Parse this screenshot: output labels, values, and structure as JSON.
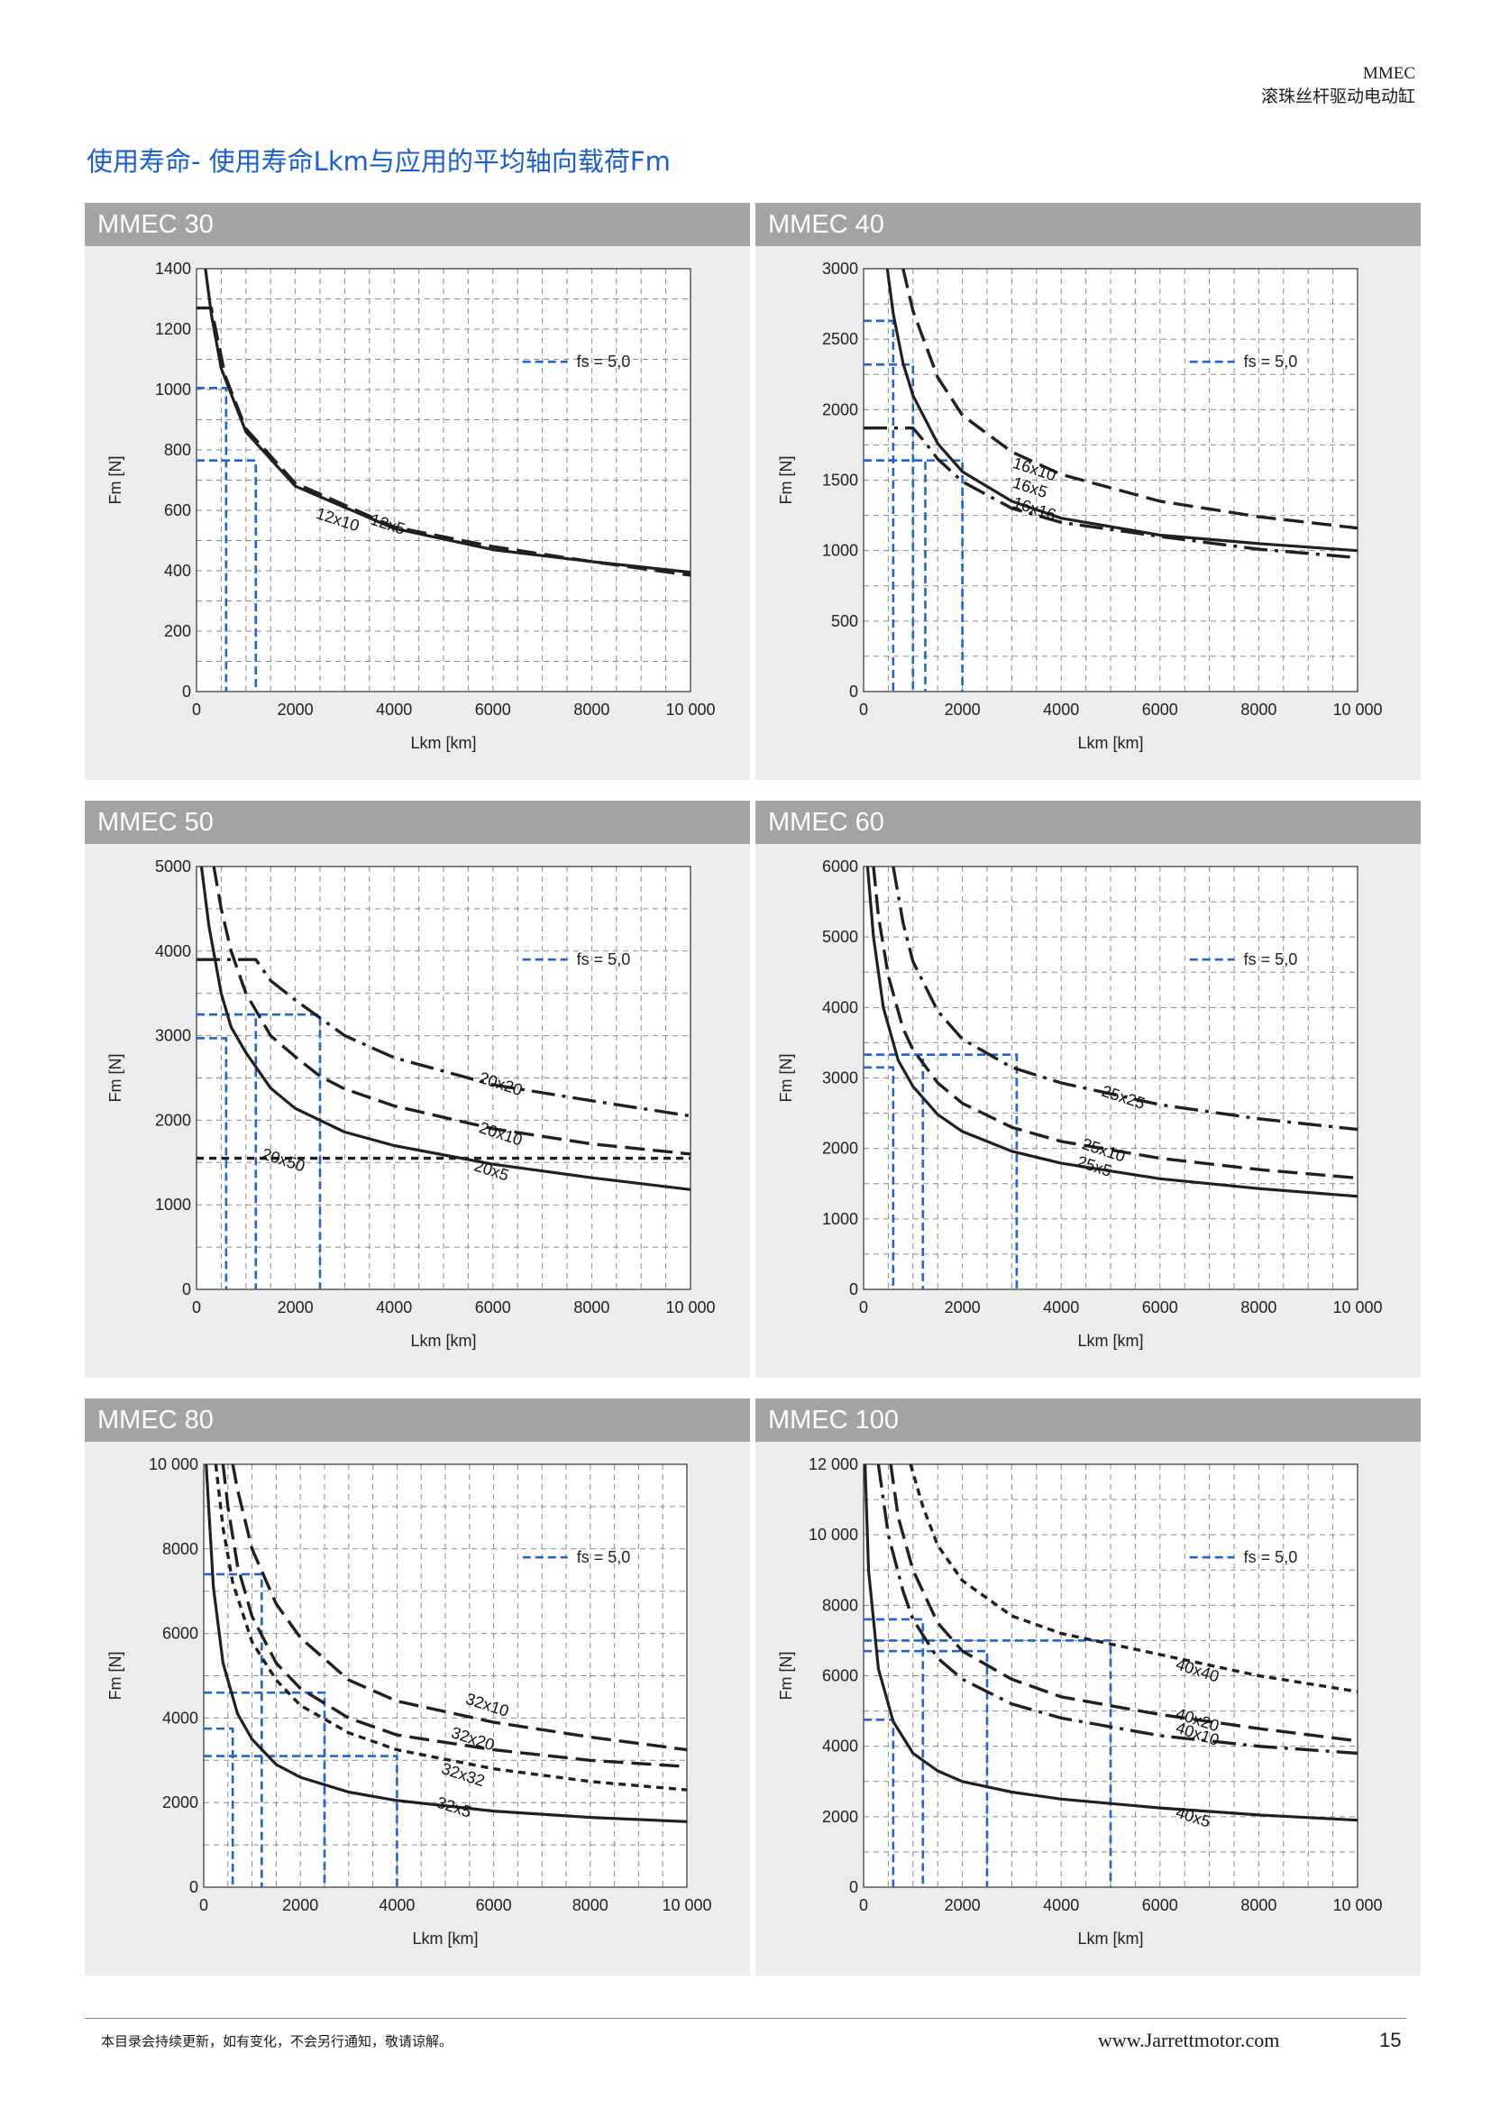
{
  "header": {
    "line1": "MMEC",
    "line2": "滚珠丝杆驱动电动缸"
  },
  "page_title": "使用寿命- 使用寿命Lkm与应用的平均轴向载荷Fm",
  "footer": {
    "note": "本目录会持续更新，如有变化，不会另行通知，敬请谅解。",
    "url": "www.Jarrettmotor.com",
    "page": "15"
  },
  "colors": {
    "curve": "#231f20",
    "fs_line": "#1f63d6",
    "panel_bg": "#ececec",
    "title_bar": "#a3a3a3"
  },
  "chart_data": [
    {
      "title": "MMEC 30",
      "type": "line",
      "xlabel": "Lkm [km]",
      "ylabel": "Fm [N]",
      "xlim": [
        0,
        10000
      ],
      "ylim": [
        0,
        1400
      ],
      "yticks": [
        0,
        200,
        400,
        600,
        800,
        1000,
        1200,
        1400
      ],
      "ytick_labels": [
        "0",
        "200",
        "400",
        "600",
        "800",
        "1000",
        "1200",
        "1400"
      ],
      "xticks": [
        0,
        2000,
        4000,
        6000,
        8000,
        10000
      ],
      "xtick_labels": [
        "0",
        "2000",
        "4000",
        "6000",
        "8000",
        "10 000"
      ],
      "legend": "fs = 5,0",
      "series": [
        {
          "name": "12x10",
          "style": "dash",
          "cap": 1270,
          "x": [
            0,
            300,
            580,
            1000,
            2000,
            4000,
            6000,
            8000,
            10000
          ],
          "y": [
            1270,
            1270,
            1045,
            870,
            690,
            545,
            480,
            430,
            385
          ]
        },
        {
          "name": "12x5",
          "style": "solid",
          "x": [
            180,
            300,
            500,
            1000,
            2000,
            4000,
            6000,
            8000,
            10000
          ],
          "y": [
            1400,
            1250,
            1070,
            860,
            680,
            540,
            470,
            430,
            395
          ]
        }
      ],
      "fs_marks": [
        {
          "x": 600,
          "y": 1005
        },
        {
          "x": 1200,
          "y": 765
        }
      ],
      "labels": [
        {
          "text": "12x10",
          "x": 2400,
          "y": 575
        },
        {
          "text": "12x5",
          "x": 3500,
          "y": 555
        }
      ]
    },
    {
      "title": "MMEC 40",
      "type": "line",
      "xlabel": "Lkm [km]",
      "ylabel": "Fm [N]",
      "xlim": [
        0,
        10000
      ],
      "ylim": [
        0,
        3000
      ],
      "yticks": [
        0,
        500,
        1000,
        1500,
        2000,
        2500,
        3000
      ],
      "ytick_labels": [
        "0",
        "500",
        "1000",
        "1500",
        "2000",
        "2500",
        "3000"
      ],
      "xticks": [
        0,
        2000,
        4000,
        6000,
        8000,
        10000
      ],
      "xtick_labels": [
        "0",
        "2000",
        "4000",
        "6000",
        "8000",
        "10 000"
      ],
      "legend": "fs = 5,0",
      "series": [
        {
          "name": "16x10",
          "style": "dash",
          "x": [
            800,
            1000,
            1500,
            2000,
            3000,
            4000,
            6000,
            8000,
            10000
          ],
          "y": [
            3000,
            2700,
            2230,
            1960,
            1700,
            1540,
            1350,
            1240,
            1160
          ]
        },
        {
          "name": "16x5",
          "style": "solid",
          "x": [
            480,
            600,
            800,
            1000,
            1500,
            2000,
            3000,
            4000,
            6000,
            8000,
            10000
          ],
          "y": [
            3000,
            2680,
            2330,
            2100,
            1760,
            1560,
            1350,
            1230,
            1110,
            1050,
            1000
          ]
        },
        {
          "name": "16x16",
          "style": "dashdot",
          "cap": 1870,
          "x": [
            0,
            1000,
            1240,
            1500,
            2000,
            3000,
            4000,
            6000,
            8000,
            10000
          ],
          "y": [
            1870,
            1870,
            1770,
            1650,
            1490,
            1300,
            1200,
            1100,
            1010,
            950
          ]
        }
      ],
      "fs_marks": [
        {
          "x": 600,
          "y": 2630
        },
        {
          "x": 1000,
          "y": 2320
        },
        {
          "x": 1250,
          "y": 1640
        },
        {
          "x": 2000,
          "y": 1640
        }
      ],
      "labels": [
        {
          "text": "16x10",
          "x": 3000,
          "y": 1590
        },
        {
          "text": "16x5",
          "x": 3000,
          "y": 1450
        },
        {
          "text": "16x16",
          "x": 3000,
          "y": 1310
        }
      ]
    },
    {
      "title": "MMEC 50",
      "type": "line",
      "xlabel": "Lkm [km]",
      "ylabel": "Fm [N]",
      "xlim": [
        0,
        10000
      ],
      "ylim": [
        0,
        5000
      ],
      "yticks": [
        0,
        1000,
        2000,
        3000,
        4000,
        5000
      ],
      "ytick_labels": [
        "0",
        "1000",
        "2000",
        "3000",
        "4000",
        "5000"
      ],
      "xticks": [
        0,
        2000,
        4000,
        6000,
        8000,
        10000
      ],
      "xtick_labels": [
        "0",
        "2000",
        "4000",
        "6000",
        "8000",
        "10 000"
      ],
      "legend": "fs = 5,0",
      "series": [
        {
          "name": "20x20",
          "style": "dashdot",
          "cap": 3900,
          "x": [
            0,
            1200,
            1500,
            2000,
            3000,
            4000,
            6000,
            8000,
            10000
          ],
          "y": [
            3900,
            3900,
            3650,
            3420,
            3000,
            2740,
            2420,
            2230,
            2050
          ]
        },
        {
          "name": "20x10",
          "style": "dash",
          "x": [
            350,
            500,
            700,
            1000,
            1500,
            2000,
            2500,
            3000,
            4000,
            6000,
            8000,
            10000
          ],
          "y": [
            5000,
            4500,
            4000,
            3500,
            3000,
            2750,
            2520,
            2370,
            2170,
            1900,
            1720,
            1600
          ]
        },
        {
          "name": "20x5",
          "style": "solid",
          "x": [
            100,
            250,
            500,
            700,
            1000,
            1500,
            2000,
            3000,
            4000,
            6000,
            8000,
            10000
          ],
          "y": [
            5000,
            4300,
            3500,
            3100,
            2800,
            2380,
            2140,
            1860,
            1700,
            1480,
            1320,
            1180
          ]
        },
        {
          "name": "20x50",
          "style": "shortdash",
          "x": [
            0,
            10000
          ],
          "y": [
            1550,
            1550
          ]
        }
      ],
      "fs_marks": [
        {
          "x": 600,
          "y": 2970
        },
        {
          "x": 1200,
          "y": 3250
        },
        {
          "x": 2500,
          "y": 3250
        }
      ],
      "labels": [
        {
          "text": "20x20",
          "x": 5700,
          "y": 2450
        },
        {
          "text": "20x10",
          "x": 5700,
          "y": 1860
        },
        {
          "text": "20x50",
          "x": 1300,
          "y": 1550
        },
        {
          "text": "20x5",
          "x": 5600,
          "y": 1410
        }
      ]
    },
    {
      "title": "MMEC 60",
      "type": "line",
      "xlabel": "Lkm [km]",
      "ylabel": "Fm [N]",
      "xlim": [
        0,
        10000
      ],
      "ylim": [
        0,
        6000
      ],
      "yticks": [
        0,
        1000,
        2000,
        3000,
        4000,
        5000,
        6000
      ],
      "ytick_labels": [
        "0",
        "1000",
        "2000",
        "3000",
        "4000",
        "5000",
        "6000"
      ],
      "xticks": [
        0,
        2000,
        4000,
        6000,
        8000,
        10000
      ],
      "xtick_labels": [
        "0",
        "2000",
        "4000",
        "6000",
        "8000",
        "10 000"
      ],
      "legend": "fs = 5,0",
      "series": [
        {
          "name": "25x25",
          "style": "dashdot",
          "x": [
            600,
            800,
            1000,
            1500,
            2000,
            3000,
            4000,
            6000,
            8000,
            10000
          ],
          "y": [
            6000,
            5200,
            4650,
            3950,
            3550,
            3150,
            2930,
            2620,
            2420,
            2270
          ]
        },
        {
          "name": "25x10",
          "style": "dash",
          "x": [
            200,
            300,
            500,
            800,
            1000,
            1500,
            2000,
            3000,
            4000,
            6000,
            8000,
            10000
          ],
          "y": [
            6000,
            5300,
            4450,
            3700,
            3400,
            2930,
            2640,
            2300,
            2100,
            1860,
            1700,
            1580
          ]
        },
        {
          "name": "25x5",
          "style": "solid",
          "x": [
            80,
            200,
            400,
            700,
            1000,
            1500,
            2000,
            3000,
            4000,
            6000,
            8000,
            10000
          ],
          "y": [
            6000,
            5000,
            4000,
            3250,
            2880,
            2480,
            2240,
            1960,
            1790,
            1570,
            1430,
            1320
          ]
        }
      ],
      "fs_marks": [
        {
          "x": 600,
          "y": 3150
        },
        {
          "x": 1200,
          "y": 3330
        },
        {
          "x": 3100,
          "y": 3330
        }
      ],
      "labels": [
        {
          "text": "25x25",
          "x": 4800,
          "y": 2750
        },
        {
          "text": "25x10",
          "x": 4400,
          "y": 2000
        },
        {
          "text": "25x5",
          "x": 4300,
          "y": 1750
        }
      ]
    },
    {
      "title": "MMEC 80",
      "type": "line",
      "xlabel": "Lkm [km]",
      "ylabel": "Fm [N]",
      "xlim": [
        0,
        10000
      ],
      "ylim": [
        0,
        10000
      ],
      "yticks": [
        0,
        2000,
        4000,
        6000,
        8000,
        10000
      ],
      "ytick_labels": [
        "0",
        "2000",
        "4000",
        "6000",
        "8000",
        "10 000"
      ],
      "xticks": [
        0,
        2000,
        4000,
        6000,
        8000,
        10000
      ],
      "xtick_labels": [
        "0",
        "2000",
        "4000",
        "6000",
        "8000",
        "10 000"
      ],
      "legend": "fs = 5,0",
      "series": [
        {
          "name": "32x10",
          "style": "dash",
          "x": [
            600,
            700,
            1000,
            1500,
            2000,
            3000,
            4000,
            6000,
            8000,
            10000
          ],
          "y": [
            10000,
            9400,
            8000,
            6700,
            5900,
            4900,
            4400,
            3900,
            3550,
            3250
          ]
        },
        {
          "name": "32x20",
          "style": "dash",
          "x": [
            400,
            500,
            700,
            1000,
            1500,
            2000,
            3000,
            4000,
            6000,
            8000,
            10000
          ],
          "y": [
            10000,
            9000,
            7600,
            6400,
            5300,
            4700,
            4000,
            3600,
            3250,
            3000,
            2850
          ]
        },
        {
          "name": "32x32",
          "style": "shortdash",
          "x": [
            250,
            400,
            600,
            1000,
            1500,
            2000,
            3000,
            4000,
            6000,
            8000,
            10000
          ],
          "y": [
            10000,
            8500,
            7200,
            5800,
            4900,
            4300,
            3650,
            3250,
            2800,
            2500,
            2300
          ]
        },
        {
          "name": "32x5",
          "style": "solid",
          "x": [
            50,
            200,
            400,
            700,
            1000,
            1500,
            2000,
            3000,
            4000,
            6000,
            8000,
            10000
          ],
          "y": [
            10000,
            7100,
            5300,
            4100,
            3500,
            2900,
            2600,
            2250,
            2050,
            1800,
            1650,
            1550
          ]
        }
      ],
      "fs_marks": [
        {
          "x": 600,
          "y": 3750
        },
        {
          "x": 1200,
          "y": 7400
        },
        {
          "x": 2500,
          "y": 4600
        },
        {
          "x": 4000,
          "y": 3100
        }
      ],
      "labels": [
        {
          "text": "32x10",
          "x": 5400,
          "y": 4350
        },
        {
          "text": "32x20",
          "x": 5100,
          "y": 3550
        },
        {
          "text": "32x32",
          "x": 4900,
          "y": 2700
        },
        {
          "text": "32x5",
          "x": 4800,
          "y": 1900
        }
      ]
    },
    {
      "title": "MMEC 100",
      "type": "line",
      "xlabel": "Lkm [km]",
      "ylabel": "Fm [N]",
      "xlim": [
        0,
        10000
      ],
      "ylim": [
        0,
        12000
      ],
      "yticks": [
        0,
        2000,
        4000,
        6000,
        8000,
        10000,
        12000
      ],
      "ytick_labels": [
        "0",
        "2000",
        "4000",
        "6000",
        "8000",
        "10 000",
        "12 000"
      ],
      "xticks": [
        0,
        2000,
        4000,
        6000,
        8000,
        10000
      ],
      "xtick_labels": [
        "0",
        "2000",
        "4000",
        "6000",
        "8000",
        "10 000"
      ],
      "legend": "fs = 5,0",
      "series": [
        {
          "name": "40x40",
          "style": "shortdash",
          "x": [
            950,
            1200,
            1500,
            2000,
            3000,
            4000,
            5000,
            6000,
            8000,
            10000
          ],
          "y": [
            12000,
            10800,
            9700,
            8700,
            7700,
            7200,
            6900,
            6600,
            6000,
            5550
          ]
        },
        {
          "name": "40x20",
          "style": "dash",
          "x": [
            550,
            700,
            1000,
            1500,
            2000,
            3000,
            4000,
            6000,
            8000,
            10000
          ],
          "y": [
            12000,
            10500,
            9000,
            7500,
            6700,
            5900,
            5400,
            4900,
            4500,
            4150
          ]
        },
        {
          "name": "40x10",
          "style": "dashdot",
          "x": [
            300,
            500,
            800,
            1000,
            1500,
            2000,
            3000,
            4000,
            6000,
            8000,
            10000
          ],
          "y": [
            12000,
            10000,
            8400,
            7600,
            6500,
            5900,
            5200,
            4800,
            4300,
            4000,
            3800
          ]
        },
        {
          "name": "40x5",
          "style": "solid",
          "x": [
            30,
            100,
            300,
            600,
            1000,
            1500,
            2000,
            3000,
            4000,
            6000,
            8000,
            10000
          ],
          "y": [
            12000,
            9000,
            6200,
            4700,
            3800,
            3300,
            3000,
            2700,
            2500,
            2250,
            2050,
            1900
          ]
        }
      ],
      "fs_marks": [
        {
          "x": 600,
          "y": 4750
        },
        {
          "x": 1200,
          "y": 7600
        },
        {
          "x": 2500,
          "y": 6700
        },
        {
          "x": 5000,
          "y": 7000
        }
      ],
      "labels": [
        {
          "text": "40x40",
          "x": 6300,
          "y": 6200
        },
        {
          "text": "40x20",
          "x": 6300,
          "y": 4800
        },
        {
          "text": "40x10",
          "x": 6300,
          "y": 4400
        },
        {
          "text": "40x5",
          "x": 6300,
          "y": 2000
        }
      ]
    }
  ]
}
